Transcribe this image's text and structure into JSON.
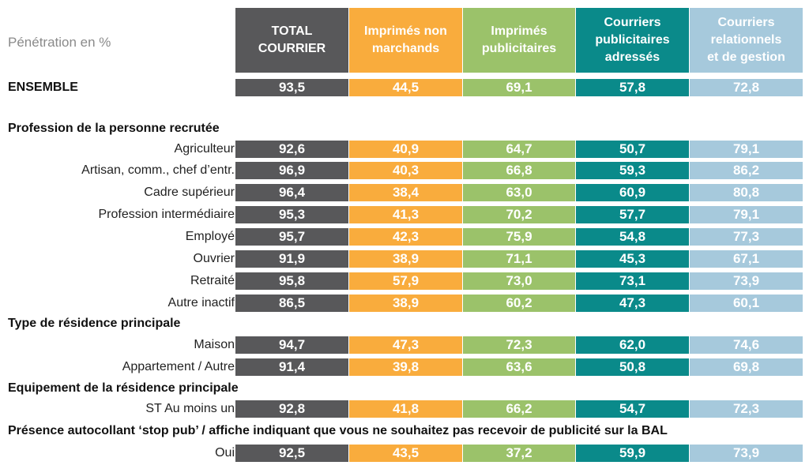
{
  "corner_label": "Pénétration en %",
  "columns": [
    {
      "label": "TOTAL\nCOURRIER",
      "color": "#58585a"
    },
    {
      "label": "Imprimés non\nmarchands",
      "color": "#f9ac3d"
    },
    {
      "label": "Imprimés\npublicitaires",
      "color": "#9bc26a"
    },
    {
      "label": "Courriers\npublicitaires\nadressés",
      "color": "#0a8a8a"
    },
    {
      "label": "Courriers\nrelationnels\net de gestion",
      "color": "#a6c9dc"
    }
  ],
  "ensemble": {
    "label": "ENSEMBLE",
    "values": [
      "93,5",
      "44,5",
      "69,1",
      "57,8",
      "72,8"
    ]
  },
  "sections": [
    {
      "title": "Profession de la personne recrutée",
      "rows": [
        {
          "label": "Agriculteur",
          "values": [
            "92,6",
            "40,9",
            "64,7",
            "50,7",
            "79,1"
          ]
        },
        {
          "label": "Artisan, comm., chef d’entr.",
          "values": [
            "96,9",
            "40,3",
            "66,8",
            "59,3",
            "86,2"
          ]
        },
        {
          "label": "Cadre supérieur",
          "values": [
            "96,4",
            "38,4",
            "63,0",
            "60,9",
            "80,8"
          ]
        },
        {
          "label": "Profession intermédiaire",
          "values": [
            "95,3",
            "41,3",
            "70,2",
            "57,7",
            "79,1"
          ]
        },
        {
          "label": "Employé",
          "values": [
            "95,7",
            "42,3",
            "75,9",
            "54,8",
            "77,3"
          ]
        },
        {
          "label": "Ouvrier",
          "values": [
            "91,9",
            "38,9",
            "71,1",
            "45,3",
            "67,1"
          ]
        },
        {
          "label": "Retraité",
          "values": [
            "95,8",
            "57,9",
            "73,0",
            "73,1",
            "73,9"
          ]
        },
        {
          "label": "Autre inactif",
          "values": [
            "86,5",
            "38,9",
            "60,2",
            "47,3",
            "60,1"
          ]
        }
      ]
    },
    {
      "title": "Type de résidence principale",
      "rows": [
        {
          "label": "Maison",
          "values": [
            "94,7",
            "47,3",
            "72,3",
            "62,0",
            "74,6"
          ]
        },
        {
          "label": "Appartement / Autre",
          "values": [
            "91,4",
            "39,8",
            "63,6",
            "50,8",
            "69,8"
          ]
        }
      ]
    },
    {
      "title": "Equipement de la résidence principale",
      "rows": [
        {
          "label": "ST Au moins un",
          "values": [
            "92,8",
            "41,8",
            "66,2",
            "54,7",
            "72,3"
          ]
        }
      ]
    },
    {
      "title": "Présence autocollant ‘stop pub’ / affiche indiquant que vous ne souhaitez pas recevoir de publicité sur la BAL",
      "rows": [
        {
          "label": "Oui",
          "values": [
            "92,5",
            "43,5",
            "37,2",
            "59,9",
            "73,9"
          ]
        }
      ]
    }
  ],
  "chart_data": {
    "type": "table",
    "columns": [
      "TOTAL COURRIER",
      "Imprimés non marchands",
      "Imprimés publicitaires",
      "Courriers publicitaires adressés",
      "Courriers relationnels et de gestion"
    ],
    "rows": [
      {
        "group": "",
        "label": "ENSEMBLE",
        "values": [
          93.5,
          44.5,
          69.1,
          57.8,
          72.8
        ]
      },
      {
        "group": "Profession de la personne recrutée",
        "label": "Agriculteur",
        "values": [
          92.6,
          40.9,
          64.7,
          50.7,
          79.1
        ]
      },
      {
        "group": "Profession de la personne recrutée",
        "label": "Artisan, comm., chef d’entr.",
        "values": [
          96.9,
          40.3,
          66.8,
          59.3,
          86.2
        ]
      },
      {
        "group": "Profession de la personne recrutée",
        "label": "Cadre supérieur",
        "values": [
          96.4,
          38.4,
          63.0,
          60.9,
          80.8
        ]
      },
      {
        "group": "Profession de la personne recrutée",
        "label": "Profession intermédiaire",
        "values": [
          95.3,
          41.3,
          70.2,
          57.7,
          79.1
        ]
      },
      {
        "group": "Profession de la personne recrutée",
        "label": "Employé",
        "values": [
          95.7,
          42.3,
          75.9,
          54.8,
          77.3
        ]
      },
      {
        "group": "Profession de la personne recrutée",
        "label": "Ouvrier",
        "values": [
          91.9,
          38.9,
          71.1,
          45.3,
          67.1
        ]
      },
      {
        "group": "Profession de la personne recrutée",
        "label": "Retraité",
        "values": [
          95.8,
          57.9,
          73.0,
          73.1,
          73.9
        ]
      },
      {
        "group": "Profession de la personne recrutée",
        "label": "Autre inactif",
        "values": [
          86.5,
          38.9,
          60.2,
          47.3,
          60.1
        ]
      },
      {
        "group": "Type de résidence principale",
        "label": "Maison",
        "values": [
          94.7,
          47.3,
          72.3,
          62.0,
          74.6
        ]
      },
      {
        "group": "Type de résidence principale",
        "label": "Appartement / Autre",
        "values": [
          91.4,
          39.8,
          63.6,
          50.8,
          69.8
        ]
      },
      {
        "group": "Equipement de la résidence principale",
        "label": "ST Au moins un",
        "values": [
          92.8,
          41.8,
          66.2,
          54.7,
          72.3
        ]
      },
      {
        "group": "Présence autocollant ‘stop pub’ / affiche indiquant que vous ne souhaitez pas recevoir de publicité sur la BAL",
        "label": "Oui",
        "values": [
          92.5,
          43.5,
          37.2,
          59.9,
          73.9
        ]
      }
    ]
  }
}
